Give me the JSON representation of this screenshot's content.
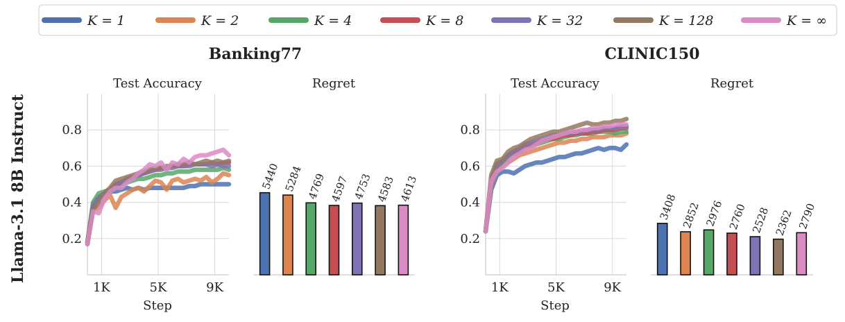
{
  "legend": [
    {
      "label": "K = 1",
      "color": "#4c72b0"
    },
    {
      "label": "K = 2",
      "color": "#dd8452"
    },
    {
      "label": "K = 4",
      "color": "#55a868"
    },
    {
      "label": "K = 8",
      "color": "#c44e52"
    },
    {
      "label": "K = 32",
      "color": "#8172b3"
    },
    {
      "label": "K = 128",
      "color": "#937860"
    },
    {
      "label": "K = ∞",
      "color": "#da8bc3"
    }
  ],
  "row_label": "Llama-3.1 8B Instruct",
  "chart_data": [
    {
      "dataset": "Banking77",
      "panels": [
        {
          "type": "line",
          "title": "Test Accuracy",
          "xlabel": "Step",
          "ylabel": "",
          "xlim": [
            0,
            10000
          ],
          "ylim": [
            0,
            1.0
          ],
          "xticks": [
            1000,
            5000,
            9000
          ],
          "xtick_labels": [
            "1K",
            "5K",
            "9K"
          ],
          "yticks": [
            0.2,
            0.4,
            0.6,
            0.8
          ],
          "ytick_labels": [
            "0.2",
            "0.4",
            "0.6",
            "0.8"
          ],
          "x": [
            0,
            400,
            800,
            1200,
            1600,
            2000,
            2400,
            2800,
            3200,
            3600,
            4000,
            4400,
            4800,
            5200,
            5600,
            6000,
            6400,
            6800,
            7200,
            7600,
            8000,
            8400,
            8800,
            9200,
            9600,
            10000
          ],
          "series": [
            {
              "name": "K = 1",
              "values": [
                0.17,
                0.39,
                0.43,
                0.45,
                0.46,
                0.46,
                0.47,
                0.48,
                0.47,
                0.48,
                0.47,
                0.48,
                0.48,
                0.48,
                0.48,
                0.48,
                0.48,
                0.48,
                0.49,
                0.49,
                0.5,
                0.5,
                0.5,
                0.5,
                0.5,
                0.5
              ]
            },
            {
              "name": "K = 2",
              "values": [
                0.17,
                0.36,
                0.37,
                0.41,
                0.44,
                0.37,
                0.43,
                0.45,
                0.47,
                0.48,
                0.46,
                0.49,
                0.52,
                0.51,
                0.47,
                0.52,
                0.53,
                0.51,
                0.52,
                0.53,
                0.52,
                0.54,
                0.51,
                0.53,
                0.56,
                0.55
              ]
            },
            {
              "name": "K = 4",
              "values": [
                0.18,
                0.4,
                0.45,
                0.46,
                0.47,
                0.48,
                0.5,
                0.51,
                0.52,
                0.53,
                0.53,
                0.54,
                0.55,
                0.55,
                0.56,
                0.56,
                0.57,
                0.57,
                0.57,
                0.58,
                0.58,
                0.58,
                0.58,
                0.58,
                0.59,
                0.58
              ]
            },
            {
              "name": "K = 8",
              "values": [
                0.18,
                0.37,
                0.42,
                0.45,
                0.47,
                0.5,
                0.51,
                0.53,
                0.54,
                0.55,
                0.56,
                0.57,
                0.58,
                0.59,
                0.59,
                0.6,
                0.6,
                0.6,
                0.61,
                0.61,
                0.61,
                0.61,
                0.62,
                0.61,
                0.62,
                0.62
              ]
            },
            {
              "name": "K = 32",
              "values": [
                0.17,
                0.38,
                0.42,
                0.45,
                0.47,
                0.49,
                0.51,
                0.53,
                0.54,
                0.55,
                0.56,
                0.57,
                0.58,
                0.58,
                0.59,
                0.59,
                0.6,
                0.6,
                0.6,
                0.61,
                0.61,
                0.61,
                0.6,
                0.61,
                0.6,
                0.6
              ]
            },
            {
              "name": "K = 128",
              "values": [
                0.18,
                0.36,
                0.4,
                0.45,
                0.48,
                0.52,
                0.53,
                0.54,
                0.55,
                0.56,
                0.57,
                0.58,
                0.59,
                0.59,
                0.6,
                0.6,
                0.61,
                0.61,
                0.62,
                0.61,
                0.62,
                0.63,
                0.62,
                0.63,
                0.62,
                0.63
              ]
            },
            {
              "name": "K = ∞",
              "values": [
                0.17,
                0.35,
                0.34,
                0.42,
                0.46,
                0.48,
                0.48,
                0.51,
                0.53,
                0.56,
                0.58,
                0.61,
                0.6,
                0.62,
                0.58,
                0.62,
                0.61,
                0.64,
                0.62,
                0.65,
                0.66,
                0.66,
                0.67,
                0.68,
                0.69,
                0.66
              ]
            }
          ]
        },
        {
          "type": "bar",
          "title": "Regret",
          "ylim": [
            0,
            12000
          ],
          "categories": [
            "K = 1",
            "K = 2",
            "K = 4",
            "K = 8",
            "K = 32",
            "K = 128",
            "K = ∞"
          ],
          "values": [
            5440,
            5284,
            4769,
            4597,
            4753,
            4583,
            4613
          ],
          "data_labels": [
            "5440",
            "5284",
            "4769",
            "4597",
            "4753",
            "4583",
            "4613"
          ]
        }
      ]
    },
    {
      "dataset": "CLINIC150",
      "panels": [
        {
          "type": "line",
          "title": "Test Accuracy",
          "xlabel": "Step",
          "ylabel": "",
          "xlim": [
            0,
            10000
          ],
          "ylim": [
            0,
            1.0
          ],
          "xticks": [
            1000,
            5000,
            9000
          ],
          "xtick_labels": [
            "1K",
            "5K",
            "9K"
          ],
          "yticks": [
            0.2,
            0.4,
            0.6,
            0.8
          ],
          "ytick_labels": [
            "0.2",
            "0.4",
            "0.6",
            "0.8"
          ],
          "x": [
            0,
            400,
            800,
            1200,
            1600,
            2000,
            2400,
            2800,
            3200,
            3600,
            4000,
            4400,
            4800,
            5200,
            5600,
            6000,
            6400,
            6800,
            7200,
            7600,
            8000,
            8400,
            8800,
            9200,
            9600,
            10000
          ],
          "series": [
            {
              "name": "K = 1",
              "values": [
                0.24,
                0.47,
                0.55,
                0.57,
                0.57,
                0.56,
                0.58,
                0.6,
                0.61,
                0.62,
                0.62,
                0.63,
                0.64,
                0.65,
                0.65,
                0.66,
                0.67,
                0.67,
                0.68,
                0.69,
                0.7,
                0.69,
                0.7,
                0.7,
                0.69,
                0.72
              ]
            },
            {
              "name": "K = 2",
              "values": [
                0.24,
                0.5,
                0.58,
                0.6,
                0.62,
                0.64,
                0.66,
                0.67,
                0.68,
                0.69,
                0.7,
                0.71,
                0.72,
                0.73,
                0.73,
                0.74,
                0.74,
                0.75,
                0.75,
                0.76,
                0.76,
                0.76,
                0.77,
                0.77,
                0.77,
                0.78
              ]
            },
            {
              "name": "K = 4",
              "values": [
                0.24,
                0.52,
                0.6,
                0.62,
                0.65,
                0.67,
                0.68,
                0.7,
                0.71,
                0.72,
                0.73,
                0.74,
                0.75,
                0.75,
                0.76,
                0.77,
                0.77,
                0.78,
                0.78,
                0.78,
                0.79,
                0.79,
                0.79,
                0.78,
                0.79,
                0.79
              ]
            },
            {
              "name": "K = 8",
              "values": [
                0.24,
                0.52,
                0.61,
                0.63,
                0.66,
                0.68,
                0.69,
                0.71,
                0.72,
                0.73,
                0.74,
                0.75,
                0.75,
                0.76,
                0.77,
                0.77,
                0.78,
                0.78,
                0.78,
                0.79,
                0.79,
                0.8,
                0.8,
                0.8,
                0.81,
                0.81
              ]
            },
            {
              "name": "K = 32",
              "values": [
                0.24,
                0.53,
                0.6,
                0.63,
                0.66,
                0.68,
                0.7,
                0.72,
                0.73,
                0.74,
                0.75,
                0.76,
                0.77,
                0.77,
                0.78,
                0.78,
                0.79,
                0.79,
                0.8,
                0.8,
                0.8,
                0.81,
                0.81,
                0.81,
                0.82,
                0.82
              ]
            },
            {
              "name": "K = 128",
              "values": [
                0.24,
                0.55,
                0.63,
                0.64,
                0.68,
                0.7,
                0.71,
                0.73,
                0.75,
                0.76,
                0.77,
                0.78,
                0.79,
                0.79,
                0.8,
                0.81,
                0.82,
                0.83,
                0.84,
                0.83,
                0.83,
                0.84,
                0.84,
                0.85,
                0.85,
                0.86
              ]
            },
            {
              "name": "K = ∞",
              "values": [
                0.24,
                0.52,
                0.57,
                0.59,
                0.62,
                0.65,
                0.67,
                0.69,
                0.7,
                0.72,
                0.74,
                0.75,
                0.76,
                0.77,
                0.78,
                0.79,
                0.79,
                0.8,
                0.8,
                0.81,
                0.81,
                0.82,
                0.82,
                0.83,
                0.83,
                0.83
              ]
            }
          ]
        },
        {
          "type": "bar",
          "title": "Regret",
          "ylim": [
            0,
            12000
          ],
          "categories": [
            "K = 1",
            "K = 2",
            "K = 4",
            "K = 8",
            "K = 32",
            "K = 128",
            "K = ∞"
          ],
          "values": [
            3408,
            2852,
            2976,
            2760,
            2528,
            2362,
            2790
          ],
          "data_labels": [
            "3408",
            "2852",
            "2976",
            "2760",
            "2528",
            "2362",
            "2790"
          ]
        }
      ]
    }
  ]
}
